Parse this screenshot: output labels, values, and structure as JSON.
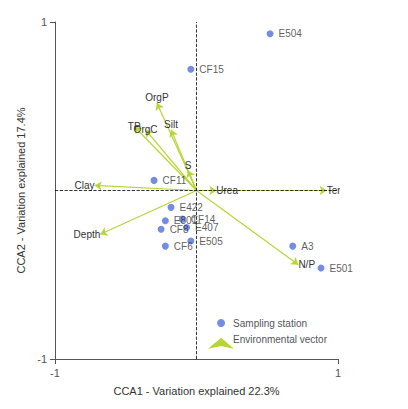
{
  "chart_data": {
    "type": "scatter",
    "xlabel": "CCA1 - Variation explained 22.3%",
    "ylabel": "CCA2 - Variation explained 17.4%",
    "xlim": [
      -1.0,
      1.0
    ],
    "ylim": [
      -1.0,
      1.0
    ],
    "xticks": [
      -1.0,
      1.0
    ],
    "yticks": [
      -1.0,
      1.0
    ],
    "grid": false,
    "legend": "lower right",
    "hlines": [
      0
    ],
    "vlines": [
      0
    ],
    "series": [
      {
        "name": "Sampling station",
        "type": "scatter",
        "marker": "circle",
        "labels": [
          "E504",
          "CF15",
          "CF11",
          "E422",
          "E801",
          "CF8",
          "CF14",
          "E407",
          "E505",
          "CF6",
          "A3",
          "E501"
        ],
        "x": [
          0.52,
          -0.04,
          -0.3,
          -0.18,
          -0.22,
          -0.25,
          -0.1,
          -0.07,
          -0.04,
          -0.22,
          0.68,
          0.88
        ],
        "y": [
          0.93,
          0.72,
          0.06,
          -0.1,
          -0.18,
          -0.23,
          -0.17,
          -0.22,
          -0.3,
          -0.33,
          -0.33,
          -0.46
        ]
      },
      {
        "name": "Environmental vector",
        "type": "vector",
        "marker": "arrow",
        "origin": [
          0,
          0
        ],
        "labels": [
          "OrgP",
          "TP",
          "OrgC",
          "Silt",
          "Clay",
          "S",
          "Urea",
          "Temperature",
          "Depth",
          "N/P"
        ],
        "x": [
          -0.28,
          -0.44,
          -0.36,
          -0.18,
          -0.72,
          -0.06,
          0.14,
          0.92,
          -0.68,
          0.72
        ],
        "y": [
          0.52,
          0.38,
          0.36,
          0.36,
          0.03,
          0.12,
          0.0,
          0.0,
          -0.26,
          -0.44
        ]
      }
    ]
  }
}
